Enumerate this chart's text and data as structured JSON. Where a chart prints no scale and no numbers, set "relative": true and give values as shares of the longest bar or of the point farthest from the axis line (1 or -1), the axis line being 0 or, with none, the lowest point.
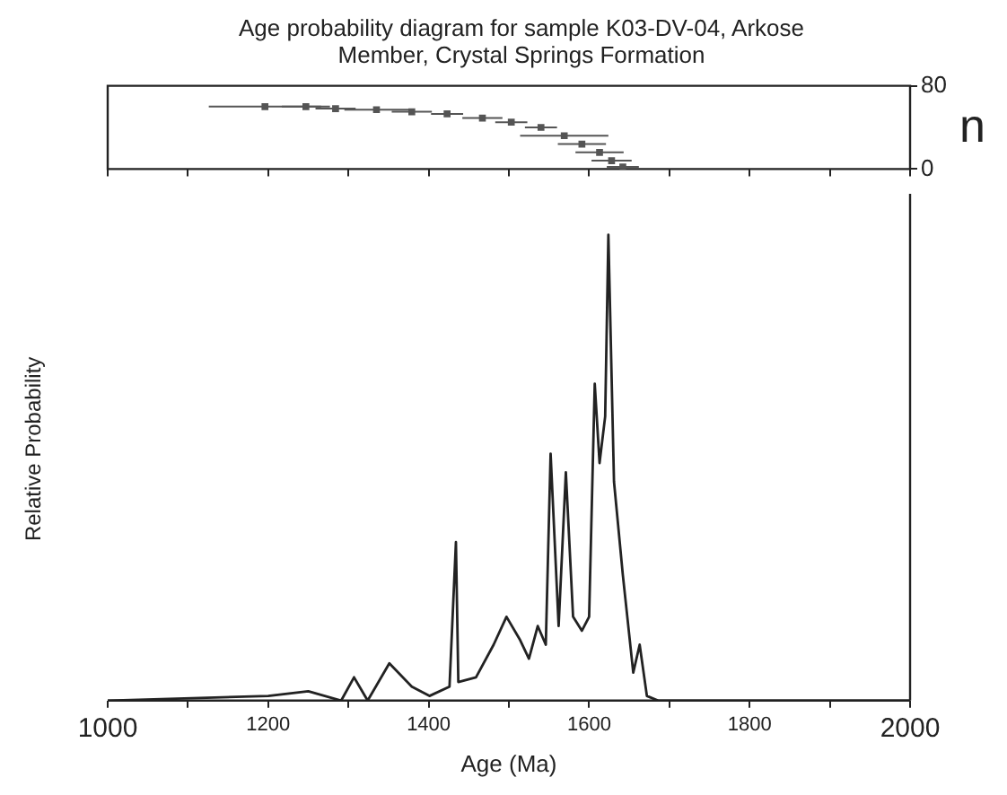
{
  "chart_data": [
    {
      "type": "scatter",
      "title": "Age probability diagram for sample K03-DV-04, Arkose Member, Crystal Springs Formation",
      "ylabel": "n",
      "xlim": [
        1000,
        2000
      ],
      "ylim": [
        0,
        80
      ],
      "yticks": [
        0,
        80
      ],
      "xticks": [
        {
          "value": 1000,
          "label": null
        },
        {
          "value": 1100,
          "label": null
        },
        {
          "value": 1200,
          "label": null
        },
        {
          "value": 1300,
          "label": null
        },
        {
          "value": 1400,
          "label": null
        },
        {
          "value": 1500,
          "label": null
        },
        {
          "value": 1600,
          "label": null
        },
        {
          "value": 1700,
          "label": null
        },
        {
          "value": 1800,
          "label": null
        },
        {
          "value": 1900,
          "label": null
        },
        {
          "value": 2000,
          "label": null
        }
      ],
      "tick_labels": "y",
      "grid": false,
      "legend": false,
      "marker": "square",
      "series": [
        {
          "color": "#555555",
          "x": [
            1196,
            1247,
            1284,
            1335,
            1379,
            1423,
            1467,
            1503,
            1540,
            1569,
            1591,
            1613,
            1628,
            1642
          ],
          "values": [
            60,
            60,
            58,
            57,
            55,
            53,
            49,
            45,
            40,
            32,
            24,
            16,
            8,
            2
          ],
          "xerrors": [
            70,
            30,
            25,
            40,
            25,
            20,
            25,
            20,
            20,
            55,
            30,
            30,
            25,
            20
          ]
        }
      ]
    },
    {
      "type": "line",
      "xlabel": "Age (Ma)",
      "ylabel": "Relative Probability",
      "relative": true,
      "xlim": [
        1000,
        2000
      ],
      "xticks": [
        1000,
        {
          "value": 1100,
          "label": null
        },
        1200,
        {
          "value": 1300,
          "label": null
        },
        1400,
        {
          "value": 1500,
          "label": null
        },
        1600,
        {
          "value": 1700,
          "label": null
        },
        1800,
        {
          "value": 1900,
          "label": null
        },
        2000
      ],
      "tick_labels": "x",
      "grid": false,
      "legend": false,
      "marker": "none",
      "line_style": "solid",
      "series": [
        {
          "color": "#222222",
          "x": [
            1000,
            1200,
            1250,
            1291,
            1307,
            1324,
            1351,
            1379,
            1401,
            1426,
            1434,
            1437,
            1459,
            1481,
            1497,
            1514,
            1525,
            1536,
            1546,
            1552,
            1562,
            1571,
            1580,
            1591,
            1600,
            1607,
            1613,
            1620,
            1624,
            1631,
            1642,
            1655,
            1663,
            1672,
            1686,
            1800,
            2000
          ],
          "values": [
            0,
            0.01,
            0.02,
            0,
            0.05,
            0,
            0.08,
            0.03,
            0.01,
            0.03,
            0.34,
            0.04,
            0.05,
            0.12,
            0.18,
            0.13,
            0.09,
            0.16,
            0.12,
            0.53,
            0.16,
            0.49,
            0.18,
            0.15,
            0.18,
            0.68,
            0.51,
            0.61,
            1,
            0.47,
            0.27,
            0.06,
            0.12,
            0.01,
            0,
            0,
            0
          ]
        }
      ]
    }
  ]
}
